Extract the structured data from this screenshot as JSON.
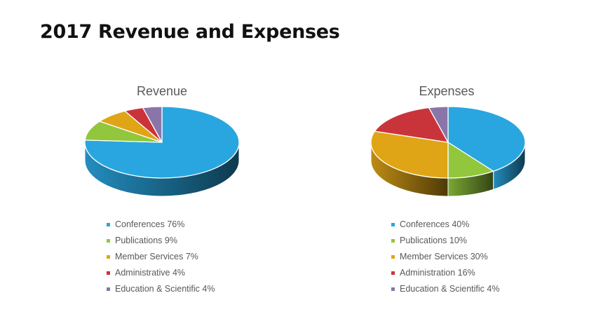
{
  "slide": {
    "title": "2017 Revenue and Expenses"
  },
  "chart_data": [
    {
      "type": "pie",
      "title": "Revenue",
      "legend_position": "bottom",
      "slices": [
        {
          "label": "Conferences 76%",
          "value": 76,
          "color": "#29a6df"
        },
        {
          "label": "Publications 9%",
          "value": 9,
          "color": "#92c63c"
        },
        {
          "label": "Member Services 7%",
          "value": 7,
          "color": "#e0a516"
        },
        {
          "label": "Administrative 4%",
          "value": 4,
          "color": "#c9343a"
        },
        {
          "label": "Education & Scientific 4%",
          "value": 4,
          "color": "#8a75a8"
        }
      ]
    },
    {
      "type": "pie",
      "title": "Expenses",
      "legend_position": "bottom",
      "slices": [
        {
          "label": "Conferences 40%",
          "value": 40,
          "color": "#29a6df"
        },
        {
          "label": "Publications 10%",
          "value": 10,
          "color": "#92c63c"
        },
        {
          "label": "Member Services 30%",
          "value": 30,
          "color": "#e0a516"
        },
        {
          "label": "Administration 16%",
          "value": 16,
          "color": "#c9343a"
        },
        {
          "label": "Education & Scientific 4%",
          "value": 4,
          "color": "#8a75a8"
        }
      ]
    }
  ]
}
